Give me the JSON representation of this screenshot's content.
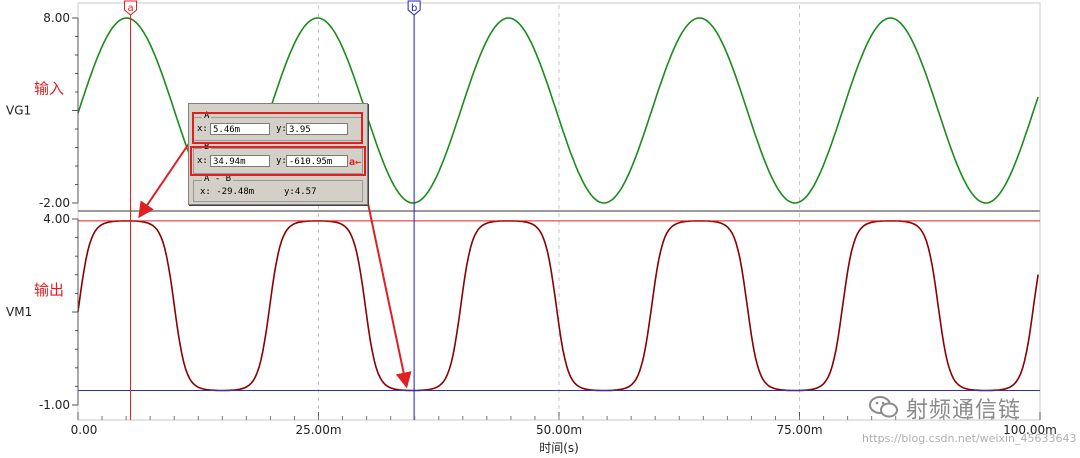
{
  "chart_data": [
    {
      "type": "line",
      "trace_label": "VG1",
      "annotation": "输入",
      "y_ticks": [
        "8.00",
        "-2.00"
      ],
      "ylim": [
        -2.0,
        8.0
      ],
      "series": [
        {
          "name": "VG1",
          "color": "#1a8c1a",
          "offset": 3.0,
          "amplitude": 5.0,
          "period_ms": 19.85,
          "first_peak_ms": 5.05
        }
      ]
    },
    {
      "type": "line",
      "trace_label": "VM1",
      "annotation": "输出",
      "y_ticks": [
        "4.00",
        "-1.00"
      ],
      "ylim": [
        -1.0,
        4.0
      ],
      "series": [
        {
          "name": "VM1",
          "color": "#8b0000",
          "high": 3.95,
          "low": -0.61
        }
      ],
      "reference_lines": [
        {
          "value": 3.95,
          "color": "#e02020"
        },
        {
          "value": -0.61,
          "color": "#3030b0"
        }
      ]
    }
  ],
  "x_axis": {
    "label": "时间(s)",
    "ticks": [
      "0.00",
      "25.00m",
      "50.00m",
      "75.00m",
      "100.00m"
    ],
    "xlim_ms": [
      0,
      100
    ]
  },
  "cursors": [
    {
      "name": "a",
      "x_ms": 5.46,
      "color": "#e02020"
    },
    {
      "name": "b",
      "x_ms": 34.94,
      "color": "#2020c0"
    }
  ],
  "readout": {
    "a": {
      "title": "A",
      "x_label": "x:",
      "x_value": "5.46m",
      "y_label": "y:",
      "y_value": "3.95"
    },
    "b": {
      "title": "B",
      "x_label": "x:",
      "x_value": "34.94m",
      "y_label": "y:",
      "y_value": "-610.95m",
      "marker": "a"
    },
    "diff": {
      "title": "A - B",
      "x_text": "x: -29.48m",
      "y_text": "y:4.57"
    }
  },
  "watermark": {
    "text": "射频通信链",
    "url": "https://blog.csdn.net/weixin_45633643"
  }
}
